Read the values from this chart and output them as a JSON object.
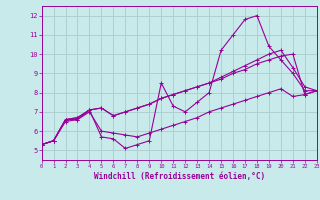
{
  "xlabel": "Windchill (Refroidissement éolien,°C)",
  "bg_color": "#c8eaea",
  "grid_color": "#aacccc",
  "line_color": "#990099",
  "xlim": [
    0,
    23
  ],
  "ylim": [
    4.5,
    12.5
  ],
  "xticks": [
    0,
    1,
    2,
    3,
    4,
    5,
    6,
    7,
    8,
    9,
    10,
    11,
    12,
    13,
    14,
    15,
    16,
    17,
    18,
    19,
    20,
    21,
    22,
    23
  ],
  "yticks": [
    5,
    6,
    7,
    8,
    9,
    10,
    11,
    12
  ],
  "series": [
    [
      5.3,
      5.5,
      6.6,
      6.6,
      7.1,
      5.7,
      5.6,
      5.1,
      5.3,
      5.5,
      8.5,
      7.3,
      7.0,
      7.5,
      8.0,
      10.2,
      11.0,
      11.8,
      12.0,
      10.4,
      9.7,
      9.0,
      8.1,
      8.1
    ],
    [
      5.3,
      5.5,
      6.6,
      6.7,
      7.1,
      7.2,
      6.8,
      7.0,
      7.2,
      7.4,
      7.7,
      7.9,
      8.1,
      8.3,
      8.5,
      8.7,
      9.0,
      9.2,
      9.5,
      9.7,
      9.9,
      10.0,
      7.9,
      8.1
    ],
    [
      5.3,
      5.5,
      6.6,
      6.7,
      7.1,
      7.2,
      6.8,
      7.0,
      7.2,
      7.4,
      7.7,
      7.9,
      8.1,
      8.3,
      8.5,
      8.8,
      9.1,
      9.4,
      9.7,
      10.0,
      10.2,
      9.3,
      8.3,
      8.1
    ],
    [
      5.3,
      5.5,
      6.5,
      6.6,
      7.0,
      6.0,
      5.9,
      5.8,
      5.7,
      5.9,
      6.1,
      6.3,
      6.5,
      6.7,
      7.0,
      7.2,
      7.4,
      7.6,
      7.8,
      8.0,
      8.2,
      7.8,
      7.9,
      8.1
    ]
  ]
}
